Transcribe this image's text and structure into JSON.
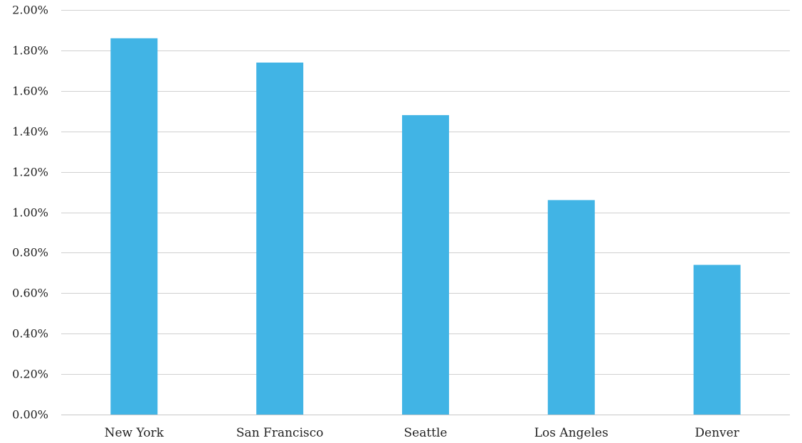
{
  "chart_data": {
    "type": "bar",
    "title": "",
    "xlabel": "",
    "ylabel": "",
    "categories": [
      "New York",
      "San Francisco",
      "Seattle",
      "Los Angeles",
      "Denver"
    ],
    "values": [
      1.86,
      1.74,
      1.48,
      1.06,
      0.74
    ],
    "ylim": [
      0,
      2.0
    ],
    "y_ticks": [
      0,
      0.2,
      0.4,
      0.6,
      0.8,
      1.0,
      1.2,
      1.4,
      1.6,
      1.8,
      2.0
    ],
    "y_tick_labels": [
      "0.00%",
      "0.20%",
      "0.40%",
      "0.60%",
      "0.80%",
      "1.00%",
      "1.20%",
      "1.40%",
      "1.60%",
      "1.80%",
      "2.00%"
    ],
    "grid": true,
    "legend": "none",
    "bar_color": "#41b4e5"
  }
}
